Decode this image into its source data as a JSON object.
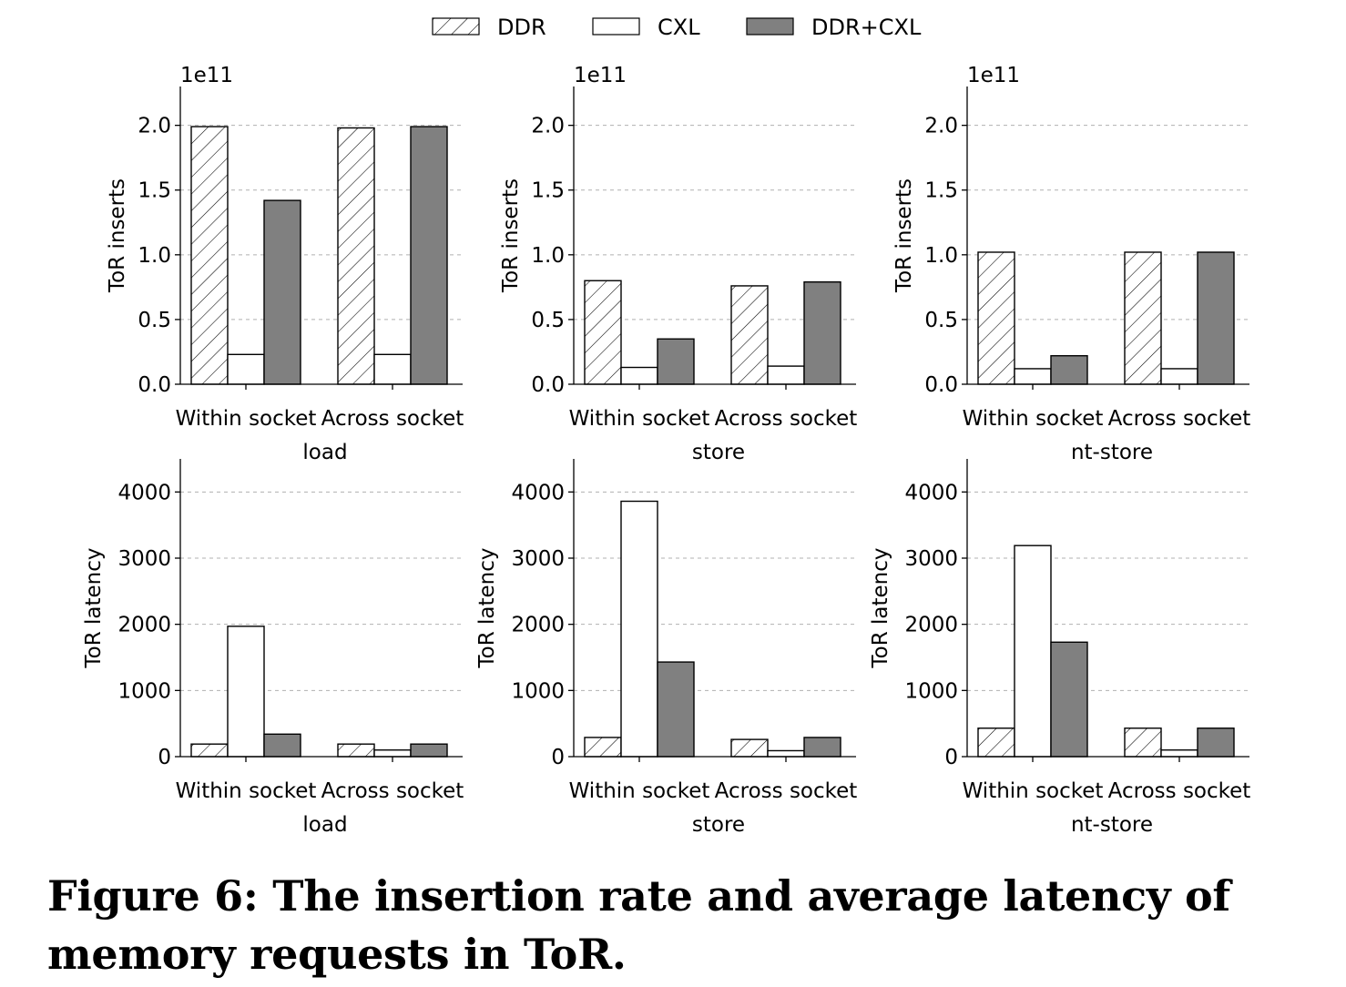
{
  "legend": [
    {
      "label": "DDR",
      "style": "hatch"
    },
    {
      "label": "CXL",
      "style": "open"
    },
    {
      "label": "DDR+CXL",
      "style": "solid"
    }
  ],
  "colors": {
    "solid": "#808080",
    "open": "#ffffff",
    "edge": "#000000",
    "grid": "#b0b0b0"
  },
  "caption": "Figure 6: The insertion rate and average latency of memory requests in ToR.",
  "chart_data": [
    {
      "type": "bar",
      "ylabel": "ToR inserts",
      "xlabel": "load",
      "offset_label": "1e11",
      "categories": [
        "Within socket",
        "Across socket"
      ],
      "ylim": [
        0,
        2.3
      ],
      "yticks": [
        "0.0",
        "0.5",
        "1.0",
        "1.5",
        "2.0"
      ],
      "yticks_values": [
        0,
        0.5,
        1.0,
        1.5,
        2.0
      ],
      "grid": true,
      "series": [
        {
          "name": "DDR",
          "values": [
            1.99,
            1.98
          ]
        },
        {
          "name": "CXL",
          "values": [
            0.23,
            0.23
          ]
        },
        {
          "name": "DDR+CXL",
          "values": [
            1.42,
            1.99
          ]
        }
      ]
    },
    {
      "type": "bar",
      "ylabel": "ToR inserts",
      "xlabel": "store",
      "offset_label": "1e11",
      "categories": [
        "Within socket",
        "Across socket"
      ],
      "ylim": [
        0,
        2.3
      ],
      "yticks": [
        "0.0",
        "0.5",
        "1.0",
        "1.5",
        "2.0"
      ],
      "yticks_values": [
        0,
        0.5,
        1.0,
        1.5,
        2.0
      ],
      "grid": true,
      "series": [
        {
          "name": "DDR",
          "values": [
            0.8,
            0.76
          ]
        },
        {
          "name": "CXL",
          "values": [
            0.13,
            0.14
          ]
        },
        {
          "name": "DDR+CXL",
          "values": [
            0.35,
            0.79
          ]
        }
      ]
    },
    {
      "type": "bar",
      "ylabel": "ToR inserts",
      "xlabel": "nt-store",
      "offset_label": "1e11",
      "categories": [
        "Within socket",
        "Across socket"
      ],
      "ylim": [
        0,
        2.3
      ],
      "yticks": [
        "0.0",
        "0.5",
        "1.0",
        "1.5",
        "2.0"
      ],
      "yticks_values": [
        0,
        0.5,
        1.0,
        1.5,
        2.0
      ],
      "grid": true,
      "series": [
        {
          "name": "DDR",
          "values": [
            1.02,
            1.02
          ]
        },
        {
          "name": "CXL",
          "values": [
            0.12,
            0.12
          ]
        },
        {
          "name": "DDR+CXL",
          "values": [
            0.22,
            1.02
          ]
        }
      ]
    },
    {
      "type": "bar",
      "ylabel": "ToR latency",
      "xlabel": "load",
      "categories": [
        "Within socket",
        "Across socket"
      ],
      "ylim": [
        0,
        4500
      ],
      "yticks": [
        "0",
        "1000",
        "2000",
        "3000",
        "4000"
      ],
      "yticks_values": [
        0,
        1000,
        2000,
        3000,
        4000
      ],
      "grid": true,
      "series": [
        {
          "name": "DDR",
          "values": [
            190,
            190
          ]
        },
        {
          "name": "CXL",
          "values": [
            1970,
            100
          ]
        },
        {
          "name": "DDR+CXL",
          "values": [
            340,
            190
          ]
        }
      ]
    },
    {
      "type": "bar",
      "ylabel": "ToR latency",
      "xlabel": "store",
      "categories": [
        "Within socket",
        "Across socket"
      ],
      "ylim": [
        0,
        4500
      ],
      "yticks": [
        "0",
        "1000",
        "2000",
        "3000",
        "4000"
      ],
      "yticks_values": [
        0,
        1000,
        2000,
        3000,
        4000
      ],
      "grid": true,
      "series": [
        {
          "name": "DDR",
          "values": [
            290,
            260
          ]
        },
        {
          "name": "CXL",
          "values": [
            3860,
            90
          ]
        },
        {
          "name": "DDR+CXL",
          "values": [
            1430,
            290
          ]
        }
      ]
    },
    {
      "type": "bar",
      "ylabel": "ToR latency",
      "xlabel": "nt-store",
      "categories": [
        "Within socket",
        "Across socket"
      ],
      "ylim": [
        0,
        4500
      ],
      "yticks": [
        "0",
        "1000",
        "2000",
        "3000",
        "4000"
      ],
      "yticks_values": [
        0,
        1000,
        2000,
        3000,
        4000
      ],
      "grid": true,
      "series": [
        {
          "name": "DDR",
          "values": [
            430,
            430
          ]
        },
        {
          "name": "CXL",
          "values": [
            3190,
            100
          ]
        },
        {
          "name": "DDR+CXL",
          "values": [
            1730,
            430
          ]
        }
      ]
    }
  ]
}
